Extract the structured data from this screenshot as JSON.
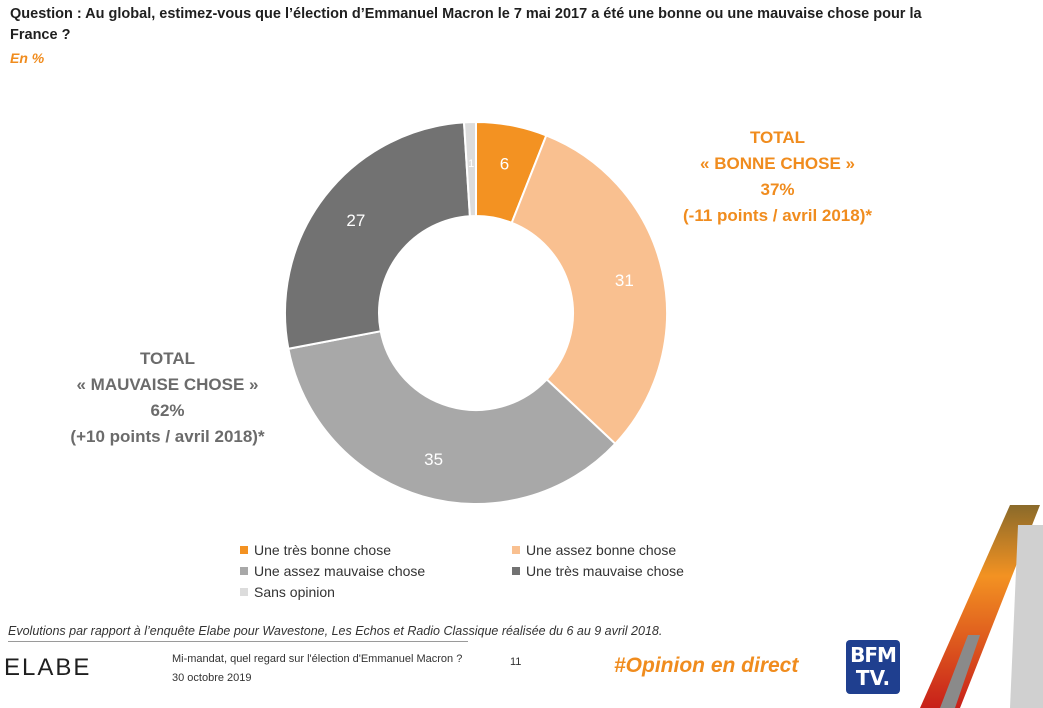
{
  "header": {
    "question": "Question : Au global, estimez-vous que l’élection d’Emmanuel Macron le 7 mai 2017 a été une bonne ou une mauvaise chose pour la France ?",
    "unit": "En %"
  },
  "chart_data": {
    "type": "pie",
    "donut": true,
    "categories": [
      "Une très bonne chose",
      "Une assez bonne chose",
      "Une assez mauvaise chose",
      "Une très mauvaise chose",
      "Sans opinion"
    ],
    "values": [
      6,
      31,
      35,
      27,
      1
    ],
    "value_labels": [
      "6",
      "31",
      "35",
      "27",
      "1"
    ],
    "colors": [
      "#f39222",
      "#f9c090",
      "#a8a8a8",
      "#727272",
      "#dcdcdc"
    ],
    "label_colors": [
      "#ffffff",
      "#ffffff",
      "#ffffff",
      "#ffffff",
      "#ffffff"
    ],
    "legend_position": "bottom",
    "start_angle_deg": 0,
    "direction": "clockwise"
  },
  "totals": {
    "good": [
      "TOTAL",
      "« BONNE CHOSE »",
      "37%",
      "(-11 points / avril 2018)*"
    ],
    "bad": [
      "TOTAL",
      "« MAUVAISE CHOSE »",
      "62%",
      "(+10 points / avril 2018)*"
    ]
  },
  "footnote": "Evolutions par rapport à l’enquête Elabe pour Wavestone, Les Echos et Radio Classique réalisée du 6 au 9 avril 2018.",
  "footer": {
    "brand": "ELABE",
    "title": "Mi-mandat, quel regard sur l'élection d'Emmanuel Macron ?",
    "date": "30 octobre 2019",
    "page": "11",
    "hashtag": "#Opinion en direct",
    "bfm_line1": "BFM",
    "bfm_line2": "TV."
  },
  "colors": {
    "accent": "#f08c1e",
    "dark_grey": "#6b6b6b",
    "bfm_blue": "#1f3f8f"
  }
}
